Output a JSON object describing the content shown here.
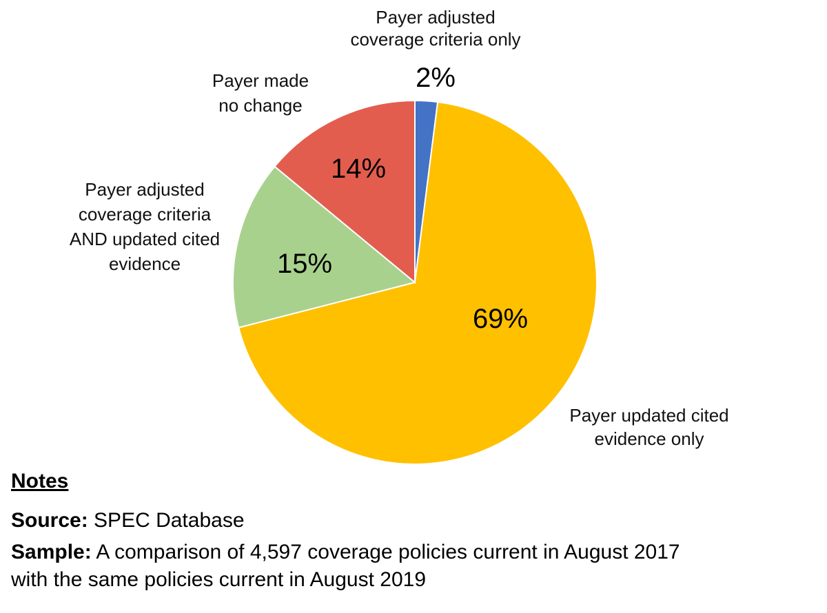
{
  "chart_data": {
    "type": "pie",
    "title": "",
    "start_angle_deg": 0,
    "direction": "clockwise",
    "slices": [
      {
        "label_lines": [
          "Payer adjusted",
          "coverage criteria only"
        ],
        "value": 2,
        "value_label": "2%",
        "color": "#4472C4"
      },
      {
        "label_lines": [
          "Payer updated cited",
          "evidence only"
        ],
        "value": 69,
        "value_label": "69%",
        "color": "#FFC000"
      },
      {
        "label_lines": [
          "Payer adjusted",
          "coverage criteria",
          "AND updated cited",
          "evidence"
        ],
        "value": 15,
        "value_label": "15%",
        "color": "#A9D18E"
      },
      {
        "label_lines": [
          "Payer made",
          "no change"
        ],
        "value": 14,
        "value_label": "14%",
        "color": "#E35D4E"
      }
    ]
  },
  "notes": {
    "heading": "Notes",
    "source_key": "Source:",
    "source_value": "SPEC Database",
    "sample_key": "Sample:",
    "sample_value_lines": [
      "A comparison of 4,597 coverage policies current in August 2017",
      "with the same policies current in August 2019"
    ]
  }
}
